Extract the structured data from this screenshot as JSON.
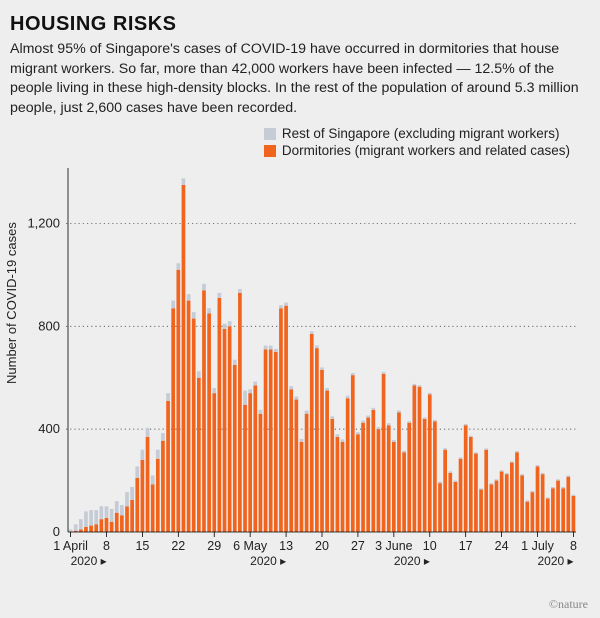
{
  "title": "HOUSING RISKS",
  "subtitle": "Almost 95% of Singapore's cases of COVID-19 have occurred in dormitories that house migrant workers. So far, more than 42,000 workers have been infected — 12.5% of the people living in these high-density blocks. In the rest of the population of around 5.3 million people, just 2,600 cases have been recorded.",
  "credit": "©nature",
  "chart": {
    "type": "stacked-bar",
    "ylabel": "Number of COVID-19 cases",
    "ylim": [
      0,
      1400
    ],
    "yticks": [
      0,
      400,
      800,
      1200
    ],
    "xticks": [
      0,
      7,
      14,
      21,
      28,
      35,
      42,
      49,
      56,
      63,
      70,
      77,
      84,
      91,
      98
    ],
    "xtick_labels": [
      "1 April",
      "8",
      "15",
      "22",
      "29",
      "6 May",
      "13",
      "20",
      "27",
      "3 June",
      "10",
      "17",
      "24",
      "1 July",
      "8"
    ],
    "xtick_sub": {
      "0": "2020 ▸",
      "35": "2020 ▸",
      "63": "2020 ▸",
      "91": "2020 ▸"
    },
    "background_color": "#eeeeee",
    "grid_color": "#333333",
    "legend": [
      {
        "label": "Rest of Singapore (excluding migrant workers)",
        "color": "#c5ccd6"
      },
      {
        "label": "Dormitories (migrant workers and related cases)",
        "color": "#f0641e"
      }
    ],
    "series": {
      "dorm_color": "#f0641e",
      "rest_color": "#c5ccd6",
      "bar_width": 0.72,
      "n": 99,
      "dorm": [
        0,
        5,
        10,
        20,
        25,
        30,
        50,
        55,
        40,
        75,
        65,
        100,
        125,
        210,
        280,
        370,
        185,
        285,
        355,
        510,
        870,
        1020,
        1350,
        900,
        830,
        600,
        940,
        850,
        540,
        910,
        790,
        800,
        650,
        930,
        495,
        540,
        570,
        460,
        710,
        710,
        700,
        870,
        880,
        555,
        515,
        350,
        460,
        770,
        715,
        630,
        550,
        440,
        370,
        350,
        520,
        610,
        380,
        425,
        445,
        475,
        400,
        615,
        415,
        350,
        465,
        310,
        425,
        570,
        565,
        440,
        535,
        430,
        190,
        320,
        230,
        195,
        285,
        415,
        370,
        305,
        165,
        320,
        185,
        200,
        235,
        225,
        270,
        310,
        220,
        118,
        155,
        255,
        225,
        130,
        170,
        200,
        170,
        215,
        140
      ],
      "rest": [
        10,
        25,
        40,
        60,
        60,
        55,
        50,
        45,
        50,
        45,
        40,
        55,
        50,
        45,
        40,
        35,
        35,
        35,
        30,
        30,
        30,
        25,
        25,
        25,
        25,
        25,
        25,
        20,
        20,
        20,
        20,
        20,
        20,
        15,
        55,
        15,
        15,
        15,
        15,
        15,
        12,
        12,
        12,
        12,
        12,
        12,
        12,
        10,
        10,
        10,
        10,
        10,
        10,
        10,
        10,
        8,
        8,
        8,
        8,
        8,
        8,
        8,
        8,
        8,
        8,
        6,
        6,
        6,
        6,
        6,
        6,
        6,
        6,
        6,
        6,
        5,
        5,
        5,
        5,
        5,
        5,
        5,
        5,
        5,
        5,
        5,
        5,
        5,
        5,
        5,
        5,
        5,
        5,
        5,
        5,
        5,
        5,
        5,
        5
      ]
    }
  }
}
